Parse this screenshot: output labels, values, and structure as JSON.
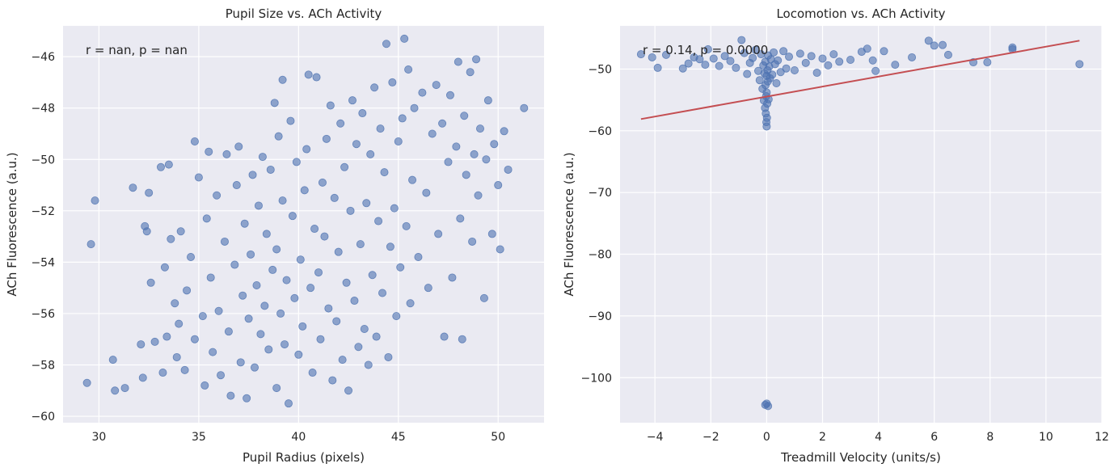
{
  "figure": {
    "background": "#ffffff",
    "axes_facecolor": "#eaeaf2",
    "grid_color": "#ffffff",
    "point_color": "#4c72b0",
    "fit_line_color": "#c44e52"
  },
  "chart_data": [
    {
      "type": "scatter",
      "title": "Pupil Size vs. ACh Activity",
      "xlabel": "Pupil Radius (pixels)",
      "ylabel": "ACh Fluorescence (a.u.)",
      "annotation": "r = nan, p = nan",
      "annotation_placement": "top-left",
      "xlim": [
        28.2,
        52.3
      ],
      "ylim": [
        -60.25,
        -44.8
      ],
      "xticks": [
        30,
        35,
        40,
        45,
        50
      ],
      "yticks": [
        -60,
        -58,
        -56,
        -54,
        -52,
        -50,
        -48,
        -46
      ],
      "grid": true,
      "legend": false,
      "points": [
        [
          29.4,
          -58.7
        ],
        [
          29.6,
          -53.3
        ],
        [
          29.8,
          -51.6
        ],
        [
          30.7,
          -57.8
        ],
        [
          30.8,
          -59.0
        ],
        [
          31.3,
          -58.9
        ],
        [
          31.7,
          -51.1
        ],
        [
          32.1,
          -57.2
        ],
        [
          32.2,
          -58.5
        ],
        [
          32.3,
          -52.6
        ],
        [
          32.4,
          -52.8
        ],
        [
          32.5,
          -51.3
        ],
        [
          32.6,
          -54.8
        ],
        [
          32.8,
          -57.1
        ],
        [
          33.1,
          -50.3
        ],
        [
          33.2,
          -58.3
        ],
        [
          33.3,
          -54.2
        ],
        [
          33.4,
          -56.9
        ],
        [
          33.5,
          -50.2
        ],
        [
          33.6,
          -53.1
        ],
        [
          33.8,
          -55.6
        ],
        [
          33.9,
          -57.7
        ],
        [
          34.0,
          -56.4
        ],
        [
          34.1,
          -52.8
        ],
        [
          34.3,
          -58.2
        ],
        [
          34.4,
          -55.1
        ],
        [
          34.6,
          -53.8
        ],
        [
          34.8,
          -49.3
        ],
        [
          34.8,
          -57.0
        ],
        [
          35.0,
          -50.7
        ],
        [
          35.2,
          -56.1
        ],
        [
          35.3,
          -58.8
        ],
        [
          35.4,
          -52.3
        ],
        [
          35.5,
          -49.7
        ],
        [
          35.6,
          -54.6
        ],
        [
          35.7,
          -57.5
        ],
        [
          35.9,
          -51.4
        ],
        [
          36.0,
          -55.9
        ],
        [
          36.1,
          -58.4
        ],
        [
          36.3,
          -53.2
        ],
        [
          36.4,
          -49.8
        ],
        [
          36.5,
          -56.7
        ],
        [
          36.6,
          -59.2
        ],
        [
          36.8,
          -54.1
        ],
        [
          36.9,
          -51.0
        ],
        [
          37.0,
          -49.5
        ],
        [
          37.1,
          -57.9
        ],
        [
          37.2,
          -55.3
        ],
        [
          37.3,
          -52.5
        ],
        [
          37.4,
          -59.3
        ],
        [
          37.5,
          -56.2
        ],
        [
          37.6,
          -53.7
        ],
        [
          37.7,
          -50.6
        ],
        [
          37.8,
          -58.1
        ],
        [
          37.9,
          -54.9
        ],
        [
          38.0,
          -51.8
        ],
        [
          38.1,
          -56.8
        ],
        [
          38.2,
          -49.9
        ],
        [
          38.3,
          -55.7
        ],
        [
          38.4,
          -52.9
        ],
        [
          38.5,
          -57.4
        ],
        [
          38.6,
          -50.4
        ],
        [
          38.7,
          -54.3
        ],
        [
          38.8,
          -47.8
        ],
        [
          38.9,
          -58.9
        ],
        [
          38.9,
          -53.5
        ],
        [
          39.0,
          -49.1
        ],
        [
          39.1,
          -56.0
        ],
        [
          39.2,
          -46.9
        ],
        [
          39.2,
          -51.6
        ],
        [
          39.3,
          -57.2
        ],
        [
          39.4,
          -54.7
        ],
        [
          39.5,
          -59.5
        ],
        [
          39.6,
          -48.5
        ],
        [
          39.7,
          -52.2
        ],
        [
          39.8,
          -55.4
        ],
        [
          39.9,
          -50.1
        ],
        [
          40.0,
          -57.6
        ],
        [
          40.1,
          -53.9
        ],
        [
          40.2,
          -56.5
        ],
        [
          40.3,
          -51.2
        ],
        [
          40.4,
          -49.6
        ],
        [
          40.5,
          -46.7
        ],
        [
          40.6,
          -55.0
        ],
        [
          40.7,
          -58.3
        ],
        [
          40.8,
          -52.7
        ],
        [
          40.9,
          -46.8
        ],
        [
          41.0,
          -54.4
        ],
        [
          41.1,
          -57.0
        ],
        [
          41.2,
          -50.9
        ],
        [
          41.3,
          -53.0
        ],
        [
          41.4,
          -49.2
        ],
        [
          41.5,
          -55.8
        ],
        [
          41.6,
          -47.9
        ],
        [
          41.7,
          -58.6
        ],
        [
          41.8,
          -51.5
        ],
        [
          41.9,
          -56.3
        ],
        [
          42.0,
          -53.6
        ],
        [
          42.1,
          -48.6
        ],
        [
          42.2,
          -57.8
        ],
        [
          42.3,
          -50.3
        ],
        [
          42.4,
          -54.8
        ],
        [
          42.5,
          -59.0
        ],
        [
          42.6,
          -52.0
        ],
        [
          42.7,
          -47.7
        ],
        [
          42.8,
          -55.5
        ],
        [
          42.9,
          -49.4
        ],
        [
          43.0,
          -57.3
        ],
        [
          43.1,
          -53.3
        ],
        [
          43.2,
          -48.2
        ],
        [
          43.3,
          -56.6
        ],
        [
          43.4,
          -51.7
        ],
        [
          43.5,
          -58.0
        ],
        [
          43.6,
          -49.8
        ],
        [
          43.7,
          -54.5
        ],
        [
          43.8,
          -47.2
        ],
        [
          43.9,
          -56.9
        ],
        [
          44.0,
          -52.4
        ],
        [
          44.1,
          -48.8
        ],
        [
          44.2,
          -55.2
        ],
        [
          44.3,
          -50.5
        ],
        [
          44.4,
          -45.5
        ],
        [
          44.5,
          -57.7
        ],
        [
          44.6,
          -53.4
        ],
        [
          44.7,
          -47.0
        ],
        [
          44.8,
          -51.9
        ],
        [
          44.9,
          -56.1
        ],
        [
          45.0,
          -49.3
        ],
        [
          45.1,
          -54.2
        ],
        [
          45.2,
          -48.4
        ],
        [
          45.3,
          -45.3
        ],
        [
          45.4,
          -52.6
        ],
        [
          45.5,
          -46.5
        ],
        [
          45.6,
          -55.6
        ],
        [
          45.7,
          -50.8
        ],
        [
          45.8,
          -48.0
        ],
        [
          46.0,
          -53.8
        ],
        [
          46.2,
          -47.4
        ],
        [
          46.4,
          -51.3
        ],
        [
          46.5,
          -55.0
        ],
        [
          46.7,
          -49.0
        ],
        [
          46.9,
          -47.1
        ],
        [
          47.0,
          -52.9
        ],
        [
          47.2,
          -48.6
        ],
        [
          47.3,
          -56.9
        ],
        [
          47.5,
          -50.1
        ],
        [
          47.6,
          -47.5
        ],
        [
          47.7,
          -54.6
        ],
        [
          47.9,
          -49.5
        ],
        [
          48.0,
          -46.2
        ],
        [
          48.1,
          -52.3
        ],
        [
          48.2,
          -57.0
        ],
        [
          48.3,
          -48.3
        ],
        [
          48.4,
          -50.6
        ],
        [
          48.6,
          -46.6
        ],
        [
          48.7,
          -53.2
        ],
        [
          48.8,
          -49.8
        ],
        [
          48.9,
          -46.1
        ],
        [
          49.0,
          -51.4
        ],
        [
          49.1,
          -48.8
        ],
        [
          49.3,
          -55.4
        ],
        [
          49.4,
          -50.0
        ],
        [
          49.5,
          -47.7
        ],
        [
          49.7,
          -52.9
        ],
        [
          49.8,
          -49.4
        ],
        [
          50.0,
          -51.0
        ],
        [
          50.1,
          -53.5
        ],
        [
          50.3,
          -48.9
        ],
        [
          50.5,
          -50.4
        ],
        [
          51.3,
          -48.0
        ]
      ]
    },
    {
      "type": "scatter",
      "title": "Locomotion vs. ACh Activity",
      "xlabel": "Treadmill Velocity (units/s)",
      "ylabel": "ACh Fluorescence (a.u.)",
      "annotation": "r = 0.14, p = 0.0000",
      "annotation_placement": "top-left",
      "xlim": [
        -5.25,
        12.0
      ],
      "ylim": [
        -107.3,
        -43.0
      ],
      "xticks": [
        -4,
        -2,
        0,
        2,
        4,
        6,
        8,
        10,
        12
      ],
      "yticks": [
        -100,
        -90,
        -80,
        -70,
        -60,
        -50
      ],
      "grid": true,
      "legend": false,
      "fit_line": {
        "x": [
          -4.5,
          11.2
        ],
        "y": [
          -58.1,
          -45.4
        ]
      },
      "points": [
        [
          -4.5,
          -47.6
        ],
        [
          -4.1,
          -48.1
        ],
        [
          -3.9,
          -49.8
        ],
        [
          -3.6,
          -47.7
        ],
        [
          -3.0,
          -49.9
        ],
        [
          -2.8,
          -49.1
        ],
        [
          -2.6,
          -48.1
        ],
        [
          -2.4,
          -48.4
        ],
        [
          -2.2,
          -49.3
        ],
        [
          -2.1,
          -46.8
        ],
        [
          -1.9,
          -48.3
        ],
        [
          -1.7,
          -49.5
        ],
        [
          -1.5,
          -47.9
        ],
        [
          -1.3,
          -48.7
        ],
        [
          -1.1,
          -49.8
        ],
        [
          -0.9,
          -45.3
        ],
        [
          -0.8,
          -47.4
        ],
        [
          -0.7,
          -50.8
        ],
        [
          -0.6,
          -49.0
        ],
        [
          -0.5,
          -48.2
        ],
        [
          -0.4,
          -46.9
        ],
        [
          -0.3,
          -50.3
        ],
        [
          -0.25,
          -51.8
        ],
        [
          -0.2,
          -47.6
        ],
        [
          -0.15,
          -53.2
        ],
        [
          -0.12,
          -49.4
        ],
        [
          -0.1,
          -55.1
        ],
        [
          -0.08,
          -50.7
        ],
        [
          -0.06,
          -56.3
        ],
        [
          -0.05,
          -48.8
        ],
        [
          -0.04,
          -52.6
        ],
        [
          -0.03,
          -57.2
        ],
        [
          -0.02,
          -54.4
        ],
        [
          -0.01,
          -58.6
        ],
        [
          0.0,
          -59.3
        ],
        [
          0.0,
          -53.8
        ],
        [
          0.0,
          -51.1
        ],
        [
          0.01,
          -57.9
        ],
        [
          0.02,
          -55.6
        ],
        [
          0.03,
          -50.2
        ],
        [
          0.04,
          -52.0
        ],
        [
          0.05,
          -47.8
        ],
        [
          0.07,
          -54.9
        ],
        [
          0.09,
          -49.6
        ],
        [
          0.12,
          -51.5
        ],
        [
          0.15,
          -48.4
        ],
        [
          0.2,
          -50.9
        ],
        [
          0.25,
          -47.3
        ],
        [
          0.3,
          -49.2
        ],
        [
          0.35,
          -52.3
        ],
        [
          0.4,
          -48.6
        ],
        [
          0.5,
          -50.5
        ],
        [
          0.6,
          -47.1
        ],
        [
          0.7,
          -49.9
        ],
        [
          0.8,
          -48.0
        ],
        [
          1.0,
          -50.2
        ],
        [
          1.2,
          -47.5
        ],
        [
          1.4,
          -49.0
        ],
        [
          1.6,
          -47.9
        ],
        [
          1.8,
          -50.6
        ],
        [
          2.0,
          -48.3
        ],
        [
          2.2,
          -49.4
        ],
        [
          2.4,
          -47.6
        ],
        [
          2.6,
          -48.8
        ],
        [
          3.0,
          -48.5
        ],
        [
          3.4,
          -47.2
        ],
        [
          3.6,
          -46.7
        ],
        [
          3.8,
          -48.6
        ],
        [
          3.9,
          -50.3
        ],
        [
          4.2,
          -47.1
        ],
        [
          4.6,
          -49.3
        ],
        [
          5.2,
          -48.1
        ],
        [
          5.8,
          -45.4
        ],
        [
          6.0,
          -46.2
        ],
        [
          6.3,
          -46.1
        ],
        [
          6.5,
          -47.7
        ],
        [
          7.4,
          -48.9
        ],
        [
          7.9,
          -48.9
        ],
        [
          8.8,
          -46.5
        ],
        [
          8.8,
          -46.8
        ],
        [
          11.2,
          -49.2
        ],
        [
          0.0,
          -104.2
        ],
        [
          0.05,
          -104.6
        ],
        [
          -0.05,
          -104.4
        ]
      ]
    }
  ]
}
